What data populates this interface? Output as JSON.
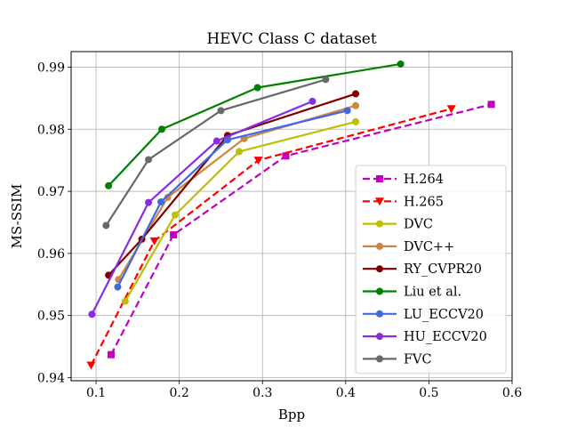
{
  "chart_data": {
    "type": "line",
    "title": "HEVC Class C dataset",
    "xlabel": "Bpp",
    "ylabel": "MS-SSIM",
    "xlim": [
      0.07,
      0.6
    ],
    "ylim": [
      0.9395,
      0.9925
    ],
    "xticks": [
      "0.1",
      "0.2",
      "0.3",
      "0.4",
      "0.5",
      "0.6"
    ],
    "yticks": [
      "0.94",
      "0.95",
      "0.96",
      "0.97",
      "0.98",
      "0.99"
    ],
    "grid": true,
    "legend_position": "lower-right",
    "series": [
      {
        "name": "H.264",
        "color": "#bf00bf",
        "dashed": true,
        "marker": "square",
        "x": [
          0.118,
          0.193,
          0.328,
          0.575
        ],
        "y": [
          0.9437,
          0.963,
          0.9757,
          0.984
        ]
      },
      {
        "name": "H.265",
        "color": "#ff0000",
        "dashed": true,
        "marker": "triangle-down",
        "x": [
          0.094,
          0.17,
          0.295,
          0.527
        ],
        "y": [
          0.942,
          0.962,
          0.975,
          0.9833
        ]
      },
      {
        "name": "DVC",
        "color": "#bfbf00",
        "dashed": false,
        "marker": "circle",
        "x": [
          0.135,
          0.195,
          0.272,
          0.412
        ],
        "y": [
          0.9523,
          0.9662,
          0.9764,
          0.9812
        ]
      },
      {
        "name": "DVC++",
        "color": "#cd853f",
        "dashed": false,
        "marker": "circle",
        "x": [
          0.127,
          0.186,
          0.278,
          0.412
        ],
        "y": [
          0.9558,
          0.969,
          0.9785,
          0.9838
        ]
      },
      {
        "name": "RY_CVPR20",
        "color": "#800000",
        "dashed": false,
        "marker": "circle",
        "x": [
          0.115,
          0.155,
          0.258,
          0.412
        ],
        "y": [
          0.9565,
          0.9623,
          0.979,
          0.9857
        ]
      },
      {
        "name": "Liu et al.",
        "color": "#008000",
        "dashed": false,
        "marker": "circle",
        "x": [
          0.115,
          0.179,
          0.294,
          0.466
        ],
        "y": [
          0.9709,
          0.98,
          0.9867,
          0.9905
        ]
      },
      {
        "name": "LU_ECCV20",
        "color": "#4169e1",
        "dashed": false,
        "marker": "circle",
        "x": [
          0.126,
          0.178,
          0.258,
          0.402
        ],
        "y": [
          0.9546,
          0.9683,
          0.9783,
          0.983
        ]
      },
      {
        "name": "HU_ECCV20",
        "color": "#8a2be2",
        "dashed": false,
        "marker": "circle",
        "x": [
          0.095,
          0.163,
          0.245,
          0.36
        ],
        "y": [
          0.9502,
          0.9682,
          0.9781,
          0.9845
        ]
      },
      {
        "name": "FVC",
        "color": "#696969",
        "dashed": false,
        "marker": "circle",
        "x": [
          0.112,
          0.163,
          0.25,
          0.376
        ],
        "y": [
          0.9645,
          0.9751,
          0.983,
          0.988
        ]
      }
    ]
  }
}
